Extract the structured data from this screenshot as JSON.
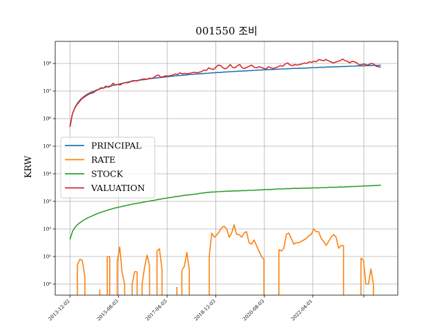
{
  "chart_data": {
    "type": "line",
    "title": "001550 조비",
    "xlabel": "",
    "ylabel": "KRW",
    "yscale": "log",
    "ylim_exponents": [
      -0.4,
      8.8
    ],
    "ytick_labels": [
      "10⁰",
      "10¹",
      "10²",
      "10³",
      "10⁴",
      "10⁵",
      "10⁶",
      "10⁷",
      "10⁸"
    ],
    "ytick_exponents": [
      0,
      1,
      2,
      3,
      4,
      5,
      6,
      7,
      8
    ],
    "x_start": "2013-12-02",
    "x_end": "2024-08-01",
    "xlim": [
      "2013-06-01",
      "2025-03-01"
    ],
    "xtick_labels": [
      "2013-12-02",
      "2015-08-03",
      "2017-04-03",
      "2018-12-03",
      "2020-08-03",
      "2022-04-01",
      ""
    ],
    "xtick_dates": [
      "2013-12-02",
      "2015-08-03",
      "2017-04-03",
      "2018-12-03",
      "2020-08-03",
      "2022-04-01",
      "2024-01-01"
    ],
    "grid": true,
    "legend_position": "center-left",
    "series": [
      {
        "name": "PRINCIPAL",
        "color": "#1f77b4",
        "log10_values": [
          5.7,
          6.16,
          6.4,
          6.55,
          6.66,
          6.75,
          6.82,
          6.88,
          6.93,
          6.97,
          7.0,
          7.04,
          7.07,
          7.1,
          7.12,
          7.15,
          7.17,
          7.19,
          7.21,
          7.23,
          7.25,
          7.27,
          7.29,
          7.31,
          7.33,
          7.35,
          7.36,
          7.37,
          7.39,
          7.4,
          7.41,
          7.42,
          7.44,
          7.45,
          7.46,
          7.47,
          7.48,
          7.49,
          7.5,
          7.51,
          7.52,
          7.53,
          7.54,
          7.55,
          7.56,
          7.56,
          7.57,
          7.58,
          7.59,
          7.6,
          7.6,
          7.61,
          7.62,
          7.62,
          7.63,
          7.64,
          7.64,
          7.65,
          7.66,
          7.66,
          7.67,
          7.67,
          7.68,
          7.69,
          7.69,
          7.7,
          7.7,
          7.71,
          7.71,
          7.72,
          7.72,
          7.73,
          7.73,
          7.74,
          7.74,
          7.75,
          7.75,
          7.76,
          7.76,
          7.77,
          7.77,
          7.78,
          7.78,
          7.78,
          7.79,
          7.79,
          7.8,
          7.8,
          7.8,
          7.81,
          7.81,
          7.82,
          7.82,
          7.82,
          7.83,
          7.83,
          7.83,
          7.84,
          7.84,
          7.85,
          7.85,
          7.85,
          7.86,
          7.86,
          7.86,
          7.87,
          7.87,
          7.87,
          7.88,
          7.88,
          7.88,
          7.89,
          7.89,
          7.89,
          7.9,
          7.9,
          7.9,
          7.91,
          7.91,
          7.91,
          7.91,
          7.92,
          7.92,
          7.92,
          7.93,
          7.93,
          7.93,
          7.94
        ]
      },
      {
        "name": "RATE",
        "color": "#ff7f0e",
        "log10_values": [
          null,
          null,
          null,
          0.7,
          0.9,
          0.85,
          0.25,
          null,
          null,
          null,
          null,
          null,
          -0.2,
          null,
          null,
          1.0,
          1.0,
          null,
          null,
          0.8,
          1.35,
          0.4,
          0.0,
          null,
          null,
          0.0,
          0.45,
          0.45,
          null,
          0.0,
          0.6,
          1.05,
          0.7,
          null,
          null,
          1.2,
          1.28,
          0.55,
          null,
          null,
          null,
          null,
          null,
          -0.1,
          null,
          0.5,
          0.65,
          1.15,
          0.5,
          null,
          null,
          null,
          null,
          null,
          null,
          null,
          1.0,
          1.85,
          1.7,
          1.78,
          1.9,
          2.05,
          2.1,
          2.0,
          1.7,
          1.85,
          2.15,
          1.8,
          1.8,
          1.7,
          1.85,
          1.9,
          1.5,
          1.45,
          1.6,
          1.4,
          1.2,
          1.0,
          0.9,
          null,
          null,
          null,
          null,
          null,
          1.25,
          1.2,
          1.3,
          1.8,
          1.85,
          1.65,
          1.45,
          1.5,
          1.5,
          1.55,
          1.6,
          1.65,
          1.75,
          1.8,
          2.0,
          1.9,
          1.9,
          1.65,
          1.55,
          1.4,
          1.55,
          1.7,
          1.8,
          1.7,
          1.3,
          1.4,
          1.4,
          null,
          null,
          null,
          null,
          null,
          null,
          0.95,
          0.85,
          0.0,
          0.0,
          0.55,
          0.0,
          null,
          null,
          null
        ]
      },
      {
        "name": "STOCK",
        "color": "#2ca02c",
        "log10_values": [
          1.62,
          1.9,
          2.05,
          2.15,
          2.22,
          2.28,
          2.34,
          2.39,
          2.43,
          2.47,
          2.51,
          2.55,
          2.58,
          2.61,
          2.64,
          2.67,
          2.7,
          2.72,
          2.75,
          2.77,
          2.79,
          2.81,
          2.83,
          2.85,
          2.87,
          2.89,
          2.91,
          2.92,
          2.94,
          2.95,
          2.97,
          2.99,
          3.0,
          3.02,
          3.03,
          3.05,
          3.07,
          3.08,
          3.1,
          3.11,
          3.13,
          3.14,
          3.15,
          3.17,
          3.18,
          3.19,
          3.21,
          3.22,
          3.23,
          3.24,
          3.25,
          3.26,
          3.27,
          3.29,
          3.3,
          3.31,
          3.32,
          3.33,
          3.34,
          3.34,
          3.35,
          3.35,
          3.36,
          3.36,
          3.37,
          3.37,
          3.37,
          3.38,
          3.38,
          3.38,
          3.39,
          3.39,
          3.39,
          3.4,
          3.4,
          3.4,
          3.41,
          3.41,
          3.42,
          3.42,
          3.43,
          3.43,
          3.43,
          3.44,
          3.44,
          3.45,
          3.45,
          3.45,
          3.46,
          3.46,
          3.46,
          3.47,
          3.47,
          3.47,
          3.47,
          3.48,
          3.48,
          3.48,
          3.48,
          3.49,
          3.49,
          3.49,
          3.49,
          3.5,
          3.5,
          3.5,
          3.51,
          3.51,
          3.51,
          3.51,
          3.52,
          3.52,
          3.52,
          3.53,
          3.53,
          3.54,
          3.54,
          3.54,
          3.55,
          3.55,
          3.56,
          3.56,
          3.56,
          3.57,
          3.57,
          3.58,
          3.58,
          3.59
        ]
      },
      {
        "name": "VALUATION",
        "color": "#d62728",
        "log10_values": [
          5.7,
          6.16,
          6.38,
          6.52,
          6.62,
          6.72,
          6.78,
          6.84,
          6.89,
          6.92,
          6.95,
          7.02,
          7.06,
          7.12,
          7.1,
          7.18,
          7.14,
          7.17,
          7.28,
          7.22,
          7.24,
          7.22,
          7.28,
          7.3,
          7.3,
          7.32,
          7.37,
          7.38,
          7.36,
          7.4,
          7.42,
          7.44,
          7.42,
          7.46,
          7.46,
          7.48,
          7.55,
          7.58,
          7.5,
          7.52,
          7.55,
          7.54,
          7.56,
          7.58,
          7.62,
          7.6,
          7.66,
          7.62,
          7.64,
          7.62,
          7.64,
          7.66,
          7.68,
          7.66,
          7.68,
          7.7,
          7.76,
          7.74,
          7.84,
          7.8,
          7.78,
          7.86,
          7.94,
          7.92,
          7.84,
          7.8,
          7.86,
          7.96,
          7.86,
          7.84,
          7.92,
          7.96,
          7.84,
          7.82,
          7.86,
          7.9,
          7.94,
          7.86,
          7.84,
          7.88,
          7.86,
          7.82,
          7.8,
          7.88,
          7.84,
          7.82,
          7.84,
          7.88,
          7.92,
          7.9,
          7.98,
          8.02,
          7.94,
          7.92,
          7.96,
          7.94,
          7.96,
          7.98,
          8.02,
          8.0,
          8.06,
          8.04,
          8.08,
          8.06,
          8.14,
          8.12,
          8.1,
          8.14,
          8.1,
          8.06,
          8.02,
          8.04,
          8.08,
          8.1,
          8.16,
          8.1,
          8.08,
          8.02,
          8.08,
          8.06,
          8.02,
          7.94,
          7.96,
          7.98,
          7.94,
          7.96,
          8.0,
          7.98,
          7.9,
          7.88,
          7.86
        ]
      }
    ]
  }
}
